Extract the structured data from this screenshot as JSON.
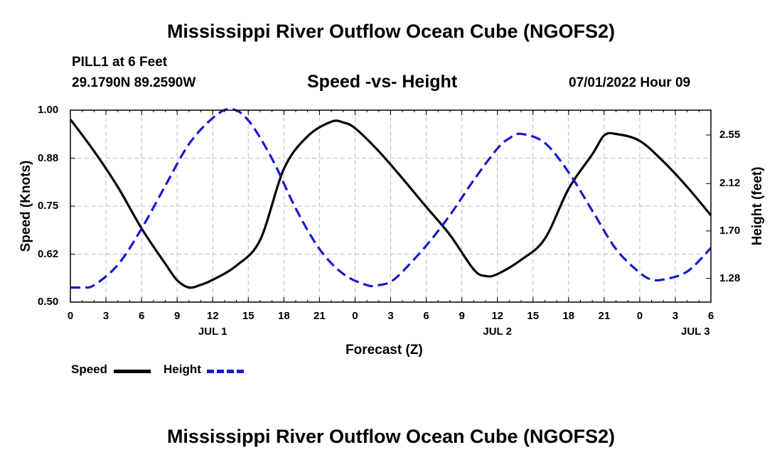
{
  "chart_data": {
    "type": "line",
    "title": "Mississippi River Outflow Ocean Cube (NGOFS2)",
    "station": "PILL1 at 6 Feet",
    "location": "29.1790N  89.2590W",
    "subtitle": "Speed -vs- Height",
    "datetime": "07/01/2022 Hour 09",
    "xlabel": "Forecast (Z)",
    "ylabel_left": "Speed (Knots)",
    "ylabel_right": "Height (feet)",
    "x_range_hours": [
      0,
      54
    ],
    "ylim_left": [
      0.5,
      1.0
    ],
    "ylim_right": [
      1.07,
      2.77
    ],
    "x_tick_hours": [
      0,
      3,
      6,
      9,
      12,
      15,
      18,
      21,
      24,
      27,
      30,
      33,
      36,
      39,
      42,
      45,
      48,
      51,
      54
    ],
    "x_tick_labels": [
      "0",
      "3",
      "6",
      "9",
      "12",
      "15",
      "18",
      "21",
      "0",
      "3",
      "6",
      "9",
      "12",
      "15",
      "18",
      "21",
      "0",
      "3",
      "6"
    ],
    "date_labels": [
      {
        "hour": 12,
        "label": "JUL 1"
      },
      {
        "hour": 36,
        "label": "JUL 2"
      },
      {
        "hour": 52.7,
        "label": "JUL 3"
      }
    ],
    "y_left_ticks": [
      0.5,
      0.625,
      0.75,
      0.875,
      1.0
    ],
    "y_left_labels": [
      "0.50",
      "0.62",
      "0.75",
      "0.88",
      "1.00"
    ],
    "y_right_ticks": [
      1.28,
      1.7,
      2.12,
      2.55
    ],
    "y_right_labels": [
      "1.28",
      "1.70",
      "2.12",
      "2.55"
    ],
    "grid": true,
    "series": [
      {
        "name": "Speed",
        "axis": "left",
        "color": "#000000",
        "style": "solid",
        "x": [
          0,
          2,
          4,
          6,
          8,
          9,
          10,
          11,
          12,
          14,
          16,
          18,
          20,
          22,
          23,
          24,
          26,
          28,
          30,
          32,
          34,
          35,
          36,
          38,
          40,
          42,
          44,
          45,
          46,
          48,
          50,
          52,
          54
        ],
        "y": [
          0.976,
          0.893,
          0.8,
          0.692,
          0.6,
          0.557,
          0.538,
          0.545,
          0.558,
          0.595,
          0.662,
          0.847,
          0.932,
          0.97,
          0.968,
          0.953,
          0.893,
          0.822,
          0.748,
          0.675,
          0.585,
          0.568,
          0.573,
          0.61,
          0.665,
          0.795,
          0.885,
          0.934,
          0.938,
          0.92,
          0.866,
          0.8,
          0.726
        ]
      },
      {
        "name": "Height",
        "axis": "right",
        "color": "#1a1acc",
        "style": "dashed",
        "x": [
          0,
          1,
          2,
          4,
          6,
          8,
          10,
          12,
          13.5,
          15,
          17,
          19,
          21,
          23,
          25,
          26,
          27,
          28,
          30,
          32,
          34,
          36,
          37,
          38,
          40,
          42,
          44,
          46,
          48,
          49,
          50,
          52,
          54
        ],
        "y": [
          1.2,
          1.2,
          1.22,
          1.4,
          1.72,
          2.1,
          2.47,
          2.7,
          2.78,
          2.68,
          2.34,
          1.9,
          1.54,
          1.32,
          1.22,
          1.22,
          1.25,
          1.34,
          1.57,
          1.84,
          2.15,
          2.43,
          2.52,
          2.56,
          2.48,
          2.22,
          1.88,
          1.54,
          1.33,
          1.27,
          1.27,
          1.34,
          1.55
        ]
      }
    ],
    "legend": [
      {
        "label": "Speed",
        "color": "#000000"
      },
      {
        "label": "Height",
        "color": "#1a1acc"
      }
    ],
    "legend_position": "bottom-left"
  }
}
